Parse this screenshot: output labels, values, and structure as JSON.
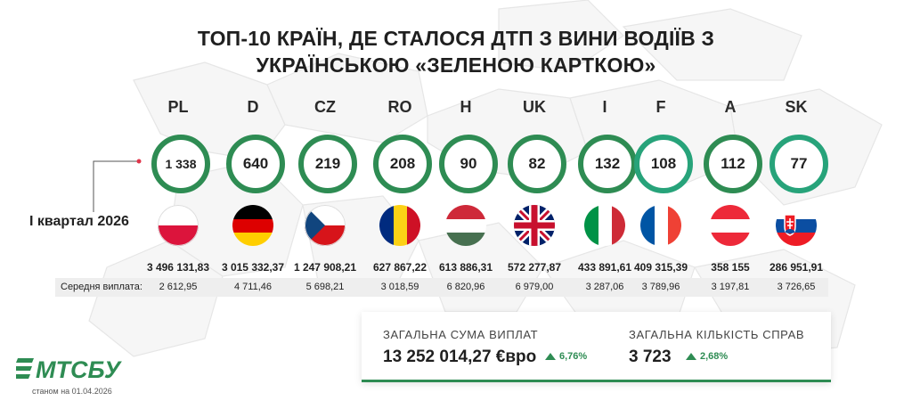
{
  "title_line1": "ТОП-10 КРАЇН, ДЕ СТАЛОСЯ ДТП З ВИНИ ВОДІЇВ З",
  "title_line2": "УКРАЇНСЬКОЮ «ЗЕЛЕНОЮ КАРТКОЮ»",
  "period": "I квартал 2026",
  "avg_label": "Середня виплата:",
  "countries": [
    {
      "code": "PL",
      "cases": "1 338",
      "amount": "3 496 131,83",
      "avg": "2 612,95",
      "flag": "poland-flag-icon"
    },
    {
      "code": "D",
      "cases": "640",
      "amount": "3 015 332,37",
      "avg": "4 711,46",
      "flag": "germany-flag-icon"
    },
    {
      "code": "CZ",
      "cases": "219",
      "amount": "1 247 908,21",
      "avg": "5 698,21",
      "flag": "czechia-flag-icon"
    },
    {
      "code": "RO",
      "cases": "208",
      "amount": "627 867,22",
      "avg": "3 018,59",
      "flag": "romania-flag-icon"
    },
    {
      "code": "H",
      "cases": "90",
      "amount": "613 886,31",
      "avg": "6 820,96",
      "flag": "hungary-flag-icon"
    },
    {
      "code": "UK",
      "cases": "82",
      "amount": "572 277,87",
      "avg": "6 979,00",
      "flag": "uk-flag-icon"
    },
    {
      "code": "I",
      "cases": "132",
      "amount": "433 891,61",
      "avg": "3 287,06",
      "flag": "italy-flag-icon"
    },
    {
      "code": "F",
      "cases": "108",
      "amount": "409 315,39",
      "avg": "3 789,96",
      "flag": "france-flag-icon"
    },
    {
      "code": "A",
      "cases": "112",
      "amount": "358 155",
      "avg": "3 197,81",
      "flag": "austria-flag-icon"
    },
    {
      "code": "SK",
      "cases": "77",
      "amount": "286 951,91",
      "avg": "3 726,65",
      "flag": "slovakia-flag-icon"
    }
  ],
  "summary": {
    "total_label": "ЗАГАЛЬНА СУМА ВИПЛАТ",
    "total_value": "13 252 014,27 €вро",
    "total_change": "6,76%",
    "count_label": "ЗАГАЛЬНА КІЛЬКІСТЬ СПРАВ",
    "count_value": "3 723",
    "count_change": "2,68%"
  },
  "logo_text": "МТСБУ",
  "as_of": "станом на 01.04.2026",
  "colors": {
    "accent": "#2e8c53",
    "accent_light": "#27a37a",
    "bar": "#eeeeee"
  }
}
